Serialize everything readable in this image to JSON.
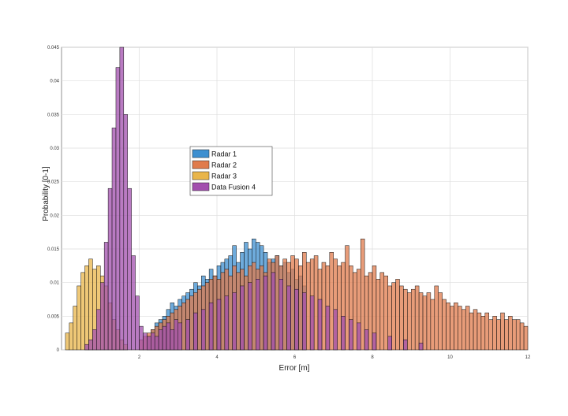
{
  "chart_data": {
    "type": "bar",
    "title": "",
    "xlabel": "Error [m]",
    "ylabel": "Probability [0-1]",
    "xlim": [
      0,
      12
    ],
    "ylim": [
      0,
      0.045
    ],
    "x_ticks": [
      2,
      4,
      6,
      8,
      10,
      12
    ],
    "x_tick_labels": [
      "2",
      "4",
      "6",
      "8",
      "10",
      "12"
    ],
    "y_ticks": [
      0,
      0.005,
      0.01,
      0.015,
      0.02,
      0.025,
      0.03,
      0.035,
      0.04,
      0.045
    ],
    "y_tick_labels": [
      "0",
      "0.005",
      "0.01",
      "0.015",
      "0.02",
      "0.025",
      "0.03",
      "0.035",
      "0.04",
      "0.045"
    ],
    "grid": true,
    "legend_position": "center",
    "bin_width": 0.1,
    "series": [
      {
        "name": "Radar 1",
        "color": "#3d8fd0",
        "x": [
          2.2,
          2.3,
          2.4,
          2.5,
          2.6,
          2.7,
          2.8,
          2.9,
          3.0,
          3.1,
          3.2,
          3.3,
          3.4,
          3.5,
          3.6,
          3.7,
          3.8,
          3.9,
          4.0,
          4.1,
          4.2,
          4.3,
          4.4,
          4.5,
          4.6,
          4.7,
          4.8,
          4.9,
          5.0,
          5.1,
          5.2,
          5.3,
          5.4,
          5.5,
          5.6,
          5.7,
          5.8,
          5.9,
          6.0,
          6.1,
          6.2
        ],
        "values": [
          0.002,
          0.003,
          0.004,
          0.0045,
          0.005,
          0.006,
          0.007,
          0.0065,
          0.0075,
          0.008,
          0.0085,
          0.009,
          0.01,
          0.0095,
          0.011,
          0.0105,
          0.012,
          0.011,
          0.0125,
          0.013,
          0.0135,
          0.014,
          0.0155,
          0.013,
          0.0145,
          0.016,
          0.015,
          0.0165,
          0.016,
          0.0155,
          0.0145,
          0.013,
          0.0135,
          0.014,
          0.0125,
          0.013,
          0.0115,
          0.012,
          0.0105,
          0.011,
          0.0095
        ]
      },
      {
        "name": "Radar 2",
        "color": "#e07b4c",
        "x": [
          2.0,
          2.1,
          2.2,
          2.3,
          2.4,
          2.5,
          2.6,
          2.7,
          2.8,
          2.9,
          3.0,
          3.1,
          3.2,
          3.3,
          3.4,
          3.5,
          3.6,
          3.7,
          3.8,
          3.9,
          4.0,
          4.1,
          4.2,
          4.3,
          4.4,
          4.5,
          4.6,
          4.7,
          4.8,
          4.9,
          5.0,
          5.1,
          5.2,
          5.3,
          5.4,
          5.5,
          5.6,
          5.7,
          5.8,
          5.9,
          6.0,
          6.1,
          6.2,
          6.3,
          6.4,
          6.5,
          6.6,
          6.7,
          6.8,
          6.9,
          7.0,
          7.1,
          7.2,
          7.3,
          7.4,
          7.5,
          7.6,
          7.7,
          7.8,
          7.9,
          8.0,
          8.1,
          8.2,
          8.3,
          8.4,
          8.5,
          8.6,
          8.7,
          8.8,
          8.9,
          9.0,
          9.1,
          9.2,
          9.3,
          9.4,
          9.5,
          9.6,
          9.7,
          9.8,
          9.9,
          10.0,
          10.1,
          10.2,
          10.3,
          10.4,
          10.5,
          10.6,
          10.7,
          10.8,
          10.9,
          11.0,
          11.1,
          11.2,
          11.3,
          11.4,
          11.5,
          11.6,
          11.7,
          11.8,
          11.9
        ],
        "values": [
          0.0015,
          0.002,
          0.0025,
          0.003,
          0.0035,
          0.004,
          0.0045,
          0.005,
          0.0055,
          0.006,
          0.0065,
          0.007,
          0.0075,
          0.008,
          0.0085,
          0.009,
          0.0095,
          0.01,
          0.0105,
          0.011,
          0.0105,
          0.0115,
          0.012,
          0.011,
          0.0125,
          0.0115,
          0.012,
          0.011,
          0.0125,
          0.013,
          0.012,
          0.0125,
          0.0115,
          0.0135,
          0.013,
          0.014,
          0.0125,
          0.0135,
          0.013,
          0.014,
          0.0135,
          0.0125,
          0.0145,
          0.013,
          0.0135,
          0.014,
          0.012,
          0.013,
          0.0125,
          0.0145,
          0.0135,
          0.0125,
          0.013,
          0.0155,
          0.0125,
          0.0115,
          0.012,
          0.0165,
          0.011,
          0.0115,
          0.0125,
          0.0105,
          0.0115,
          0.011,
          0.0095,
          0.01,
          0.0105,
          0.0095,
          0.009,
          0.0085,
          0.009,
          0.0095,
          0.0085,
          0.008,
          0.0085,
          0.0075,
          0.0095,
          0.0085,
          0.0075,
          0.007,
          0.0065,
          0.007,
          0.0065,
          0.006,
          0.0065,
          0.0055,
          0.006,
          0.0055,
          0.005,
          0.0055,
          0.0045,
          0.005,
          0.0045,
          0.0055,
          0.0045,
          0.005,
          0.0045,
          0.0045,
          0.004,
          0.0035
        ]
      },
      {
        "name": "Radar 3",
        "color": "#e9b54a",
        "x": [
          0.1,
          0.2,
          0.3,
          0.4,
          0.5,
          0.6,
          0.7,
          0.8,
          0.9,
          1.0,
          1.1,
          1.2,
          1.3,
          1.4,
          1.5,
          1.6
        ],
        "values": [
          0.0025,
          0.004,
          0.0065,
          0.0095,
          0.0115,
          0.0125,
          0.0135,
          0.012,
          0.0125,
          0.011,
          0.0095,
          0.007,
          0.0045,
          0.003,
          0.0015,
          0.0008
        ]
      },
      {
        "name": "Data Fusion 4",
        "color": "#a24fae",
        "x": [
          0.6,
          0.7,
          0.8,
          0.9,
          1.0,
          1.1,
          1.2,
          1.3,
          1.4,
          1.5,
          1.6,
          1.7,
          1.8,
          1.9,
          2.0,
          2.1,
          2.2,
          2.3,
          2.4,
          2.5,
          2.6,
          2.7,
          2.8,
          2.9,
          3.0,
          3.2,
          3.4,
          3.6,
          3.8,
          4.0,
          4.2,
          4.4,
          4.6,
          4.8,
          5.0,
          5.2,
          5.4,
          5.6,
          5.8,
          6.0,
          6.2,
          6.4,
          6.6,
          6.8,
          7.0,
          7.2,
          7.4,
          7.6,
          7.8,
          8.0,
          8.4,
          8.8,
          9.2
        ],
        "values": [
          0.0008,
          0.0015,
          0.003,
          0.006,
          0.01,
          0.016,
          0.024,
          0.033,
          0.042,
          0.045,
          0.035,
          0.024,
          0.014,
          0.008,
          0.0035,
          0.0025,
          0.002,
          0.0025,
          0.002,
          0.003,
          0.0035,
          0.004,
          0.003,
          0.0045,
          0.004,
          0.0045,
          0.0055,
          0.006,
          0.007,
          0.0075,
          0.008,
          0.0085,
          0.0095,
          0.01,
          0.0105,
          0.011,
          0.0115,
          0.0105,
          0.0095,
          0.009,
          0.0085,
          0.008,
          0.0075,
          0.0065,
          0.006,
          0.005,
          0.0045,
          0.004,
          0.003,
          0.0025,
          0.002,
          0.0015,
          0.001
        ]
      }
    ]
  }
}
